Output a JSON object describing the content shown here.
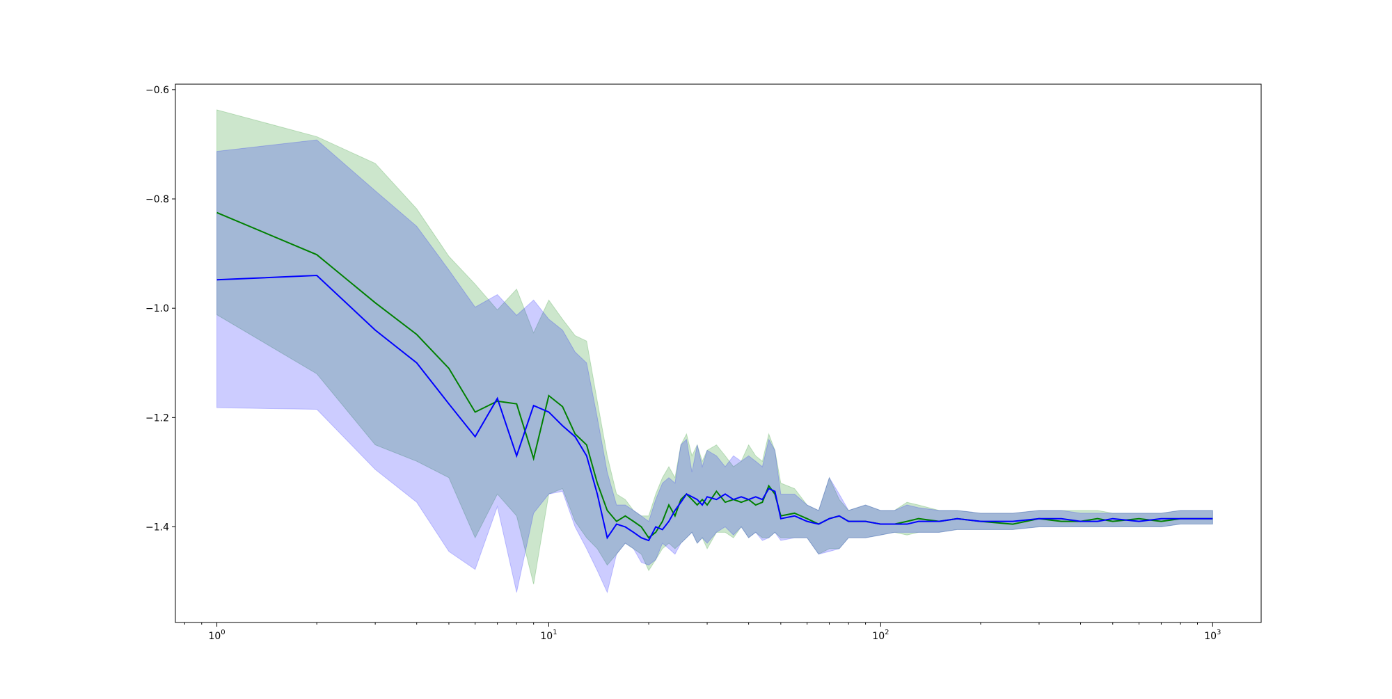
{
  "chart_data": {
    "type": "line",
    "title": "",
    "xlabel": "",
    "ylabel": "",
    "x_scale": "log",
    "xlim": [
      0.75,
      1400
    ],
    "ylim": [
      -1.575,
      -0.59
    ],
    "grid": false,
    "y_ticks": [
      -0.6,
      -0.8,
      -1.0,
      -1.2,
      -1.4
    ],
    "y_tick_labels": [
      "−0.6",
      "−0.8",
      "−1.0",
      "−1.2",
      "−1.4"
    ],
    "x_ticks": [
      1,
      10,
      100,
      1000
    ],
    "x_tick_bases": [
      "10",
      "10",
      "10",
      "10"
    ],
    "x_tick_exps": [
      "0",
      "1",
      "2",
      "3"
    ],
    "series": [
      {
        "color": "#008000",
        "band_color": "#008000",
        "x": [
          1,
          2,
          3,
          4,
          5,
          6,
          7,
          8,
          9,
          10,
          11,
          12,
          13,
          14,
          15,
          16,
          17,
          18,
          19,
          20,
          21,
          22,
          23,
          24,
          25,
          26,
          27,
          28,
          29,
          30,
          32,
          34,
          36,
          38,
          40,
          42,
          44,
          46,
          48,
          50,
          55,
          60,
          65,
          70,
          75,
          80,
          90,
          100,
          110,
          120,
          130,
          150,
          170,
          200,
          250,
          300,
          350,
          400,
          450,
          500,
          600,
          700,
          800,
          900,
          1000
        ],
        "mean": [
          -0.825,
          -0.902,
          -0.99,
          -1.048,
          -1.11,
          -1.19,
          -1.17,
          -1.175,
          -1.275,
          -1.16,
          -1.18,
          -1.23,
          -1.25,
          -1.32,
          -1.37,
          -1.39,
          -1.38,
          -1.39,
          -1.4,
          -1.42,
          -1.41,
          -1.39,
          -1.36,
          -1.38,
          -1.35,
          -1.34,
          -1.35,
          -1.36,
          -1.35,
          -1.36,
          -1.335,
          -1.355,
          -1.35,
          -1.355,
          -1.35,
          -1.36,
          -1.355,
          -1.325,
          -1.34,
          -1.38,
          -1.375,
          -1.385,
          -1.395,
          -1.385,
          -1.38,
          -1.39,
          -1.39,
          -1.395,
          -1.395,
          -1.39,
          -1.385,
          -1.39,
          -1.385,
          -1.39,
          -1.395,
          -1.385,
          -1.39,
          -1.39,
          -1.385,
          -1.39,
          -1.385,
          -1.39,
          -1.385,
          -1.385,
          -1.385
        ],
        "upper": [
          -0.637,
          -0.686,
          -0.735,
          -0.818,
          -0.905,
          -0.956,
          -1.003,
          -0.965,
          -1.045,
          -0.985,
          -1.02,
          -1.05,
          -1.06,
          -1.17,
          -1.27,
          -1.34,
          -1.35,
          -1.37,
          -1.38,
          -1.38,
          -1.34,
          -1.31,
          -1.29,
          -1.31,
          -1.25,
          -1.23,
          -1.27,
          -1.25,
          -1.28,
          -1.26,
          -1.25,
          -1.27,
          -1.29,
          -1.28,
          -1.25,
          -1.27,
          -1.28,
          -1.23,
          -1.26,
          -1.32,
          -1.33,
          -1.36,
          -1.37,
          -1.31,
          -1.35,
          -1.37,
          -1.36,
          -1.37,
          -1.37,
          -1.355,
          -1.36,
          -1.37,
          -1.37,
          -1.375,
          -1.375,
          -1.37,
          -1.37,
          -1.37,
          -1.37,
          -1.375,
          -1.375,
          -1.375,
          -1.37,
          -1.37,
          -1.37
        ],
        "lower": [
          -1.012,
          -1.12,
          -1.25,
          -1.28,
          -1.31,
          -1.42,
          -1.34,
          -1.38,
          -1.505,
          -1.34,
          -1.33,
          -1.39,
          -1.42,
          -1.44,
          -1.47,
          -1.45,
          -1.43,
          -1.44,
          -1.45,
          -1.48,
          -1.46,
          -1.44,
          -1.43,
          -1.44,
          -1.43,
          -1.42,
          -1.41,
          -1.43,
          -1.42,
          -1.44,
          -1.41,
          -1.41,
          -1.42,
          -1.4,
          -1.42,
          -1.41,
          -1.42,
          -1.42,
          -1.41,
          -1.42,
          -1.42,
          -1.42,
          -1.45,
          -1.44,
          -1.44,
          -1.42,
          -1.42,
          -1.415,
          -1.41,
          -1.415,
          -1.41,
          -1.41,
          -1.405,
          -1.405,
          -1.405,
          -1.4,
          -1.4,
          -1.4,
          -1.4,
          -1.4,
          -1.4,
          -1.4,
          -1.395,
          -1.395,
          -1.395
        ]
      },
      {
        "color": "#0000ff",
        "band_color": "#0000ff",
        "x": [
          1,
          2,
          3,
          4,
          5,
          6,
          7,
          8,
          9,
          10,
          11,
          12,
          13,
          14,
          15,
          16,
          17,
          18,
          19,
          20,
          21,
          22,
          23,
          24,
          25,
          26,
          27,
          28,
          29,
          30,
          32,
          34,
          36,
          38,
          40,
          42,
          44,
          46,
          48,
          50,
          55,
          60,
          65,
          70,
          75,
          80,
          90,
          100,
          110,
          120,
          130,
          150,
          170,
          200,
          250,
          300,
          350,
          400,
          450,
          500,
          600,
          700,
          800,
          900,
          1000
        ],
        "mean": [
          -0.948,
          -0.94,
          -1.04,
          -1.1,
          -1.175,
          -1.235,
          -1.165,
          -1.27,
          -1.178,
          -1.19,
          -1.215,
          -1.235,
          -1.27,
          -1.34,
          -1.42,
          -1.395,
          -1.4,
          -1.41,
          -1.42,
          -1.425,
          -1.4,
          -1.405,
          -1.39,
          -1.37,
          -1.355,
          -1.34,
          -1.345,
          -1.35,
          -1.36,
          -1.345,
          -1.35,
          -1.34,
          -1.35,
          -1.345,
          -1.35,
          -1.345,
          -1.35,
          -1.33,
          -1.335,
          -1.385,
          -1.38,
          -1.39,
          -1.395,
          -1.385,
          -1.38,
          -1.39,
          -1.39,
          -1.395,
          -1.395,
          -1.395,
          -1.39,
          -1.39,
          -1.385,
          -1.39,
          -1.39,
          -1.385,
          -1.385,
          -1.39,
          -1.39,
          -1.385,
          -1.39,
          -1.385,
          -1.385,
          -1.385,
          -1.385
        ],
        "upper": [
          -0.713,
          -0.692,
          -0.785,
          -0.85,
          -0.93,
          -0.998,
          -0.975,
          -1.013,
          -0.985,
          -1.02,
          -1.04,
          -1.08,
          -1.1,
          -1.2,
          -1.3,
          -1.36,
          -1.36,
          -1.37,
          -1.38,
          -1.39,
          -1.35,
          -1.32,
          -1.31,
          -1.32,
          -1.25,
          -1.24,
          -1.3,
          -1.25,
          -1.29,
          -1.26,
          -1.27,
          -1.29,
          -1.27,
          -1.28,
          -1.27,
          -1.28,
          -1.29,
          -1.24,
          -1.26,
          -1.34,
          -1.34,
          -1.36,
          -1.37,
          -1.31,
          -1.34,
          -1.37,
          -1.36,
          -1.37,
          -1.37,
          -1.36,
          -1.365,
          -1.37,
          -1.37,
          -1.375,
          -1.375,
          -1.37,
          -1.37,
          -1.375,
          -1.375,
          -1.375,
          -1.375,
          -1.375,
          -1.37,
          -1.37,
          -1.37
        ],
        "lower": [
          -1.182,
          -1.185,
          -1.295,
          -1.355,
          -1.445,
          -1.478,
          -1.363,
          -1.52,
          -1.375,
          -1.34,
          -1.335,
          -1.4,
          -1.44,
          -1.48,
          -1.52,
          -1.45,
          -1.43,
          -1.44,
          -1.465,
          -1.47,
          -1.46,
          -1.43,
          -1.44,
          -1.45,
          -1.43,
          -1.42,
          -1.41,
          -1.43,
          -1.42,
          -1.43,
          -1.41,
          -1.4,
          -1.415,
          -1.4,
          -1.42,
          -1.41,
          -1.425,
          -1.42,
          -1.41,
          -1.425,
          -1.42,
          -1.42,
          -1.45,
          -1.445,
          -1.44,
          -1.42,
          -1.42,
          -1.415,
          -1.41,
          -1.41,
          -1.41,
          -1.41,
          -1.405,
          -1.405,
          -1.405,
          -1.4,
          -1.4,
          -1.4,
          -1.4,
          -1.4,
          -1.4,
          -1.4,
          -1.395,
          -1.395,
          -1.395
        ]
      }
    ]
  }
}
